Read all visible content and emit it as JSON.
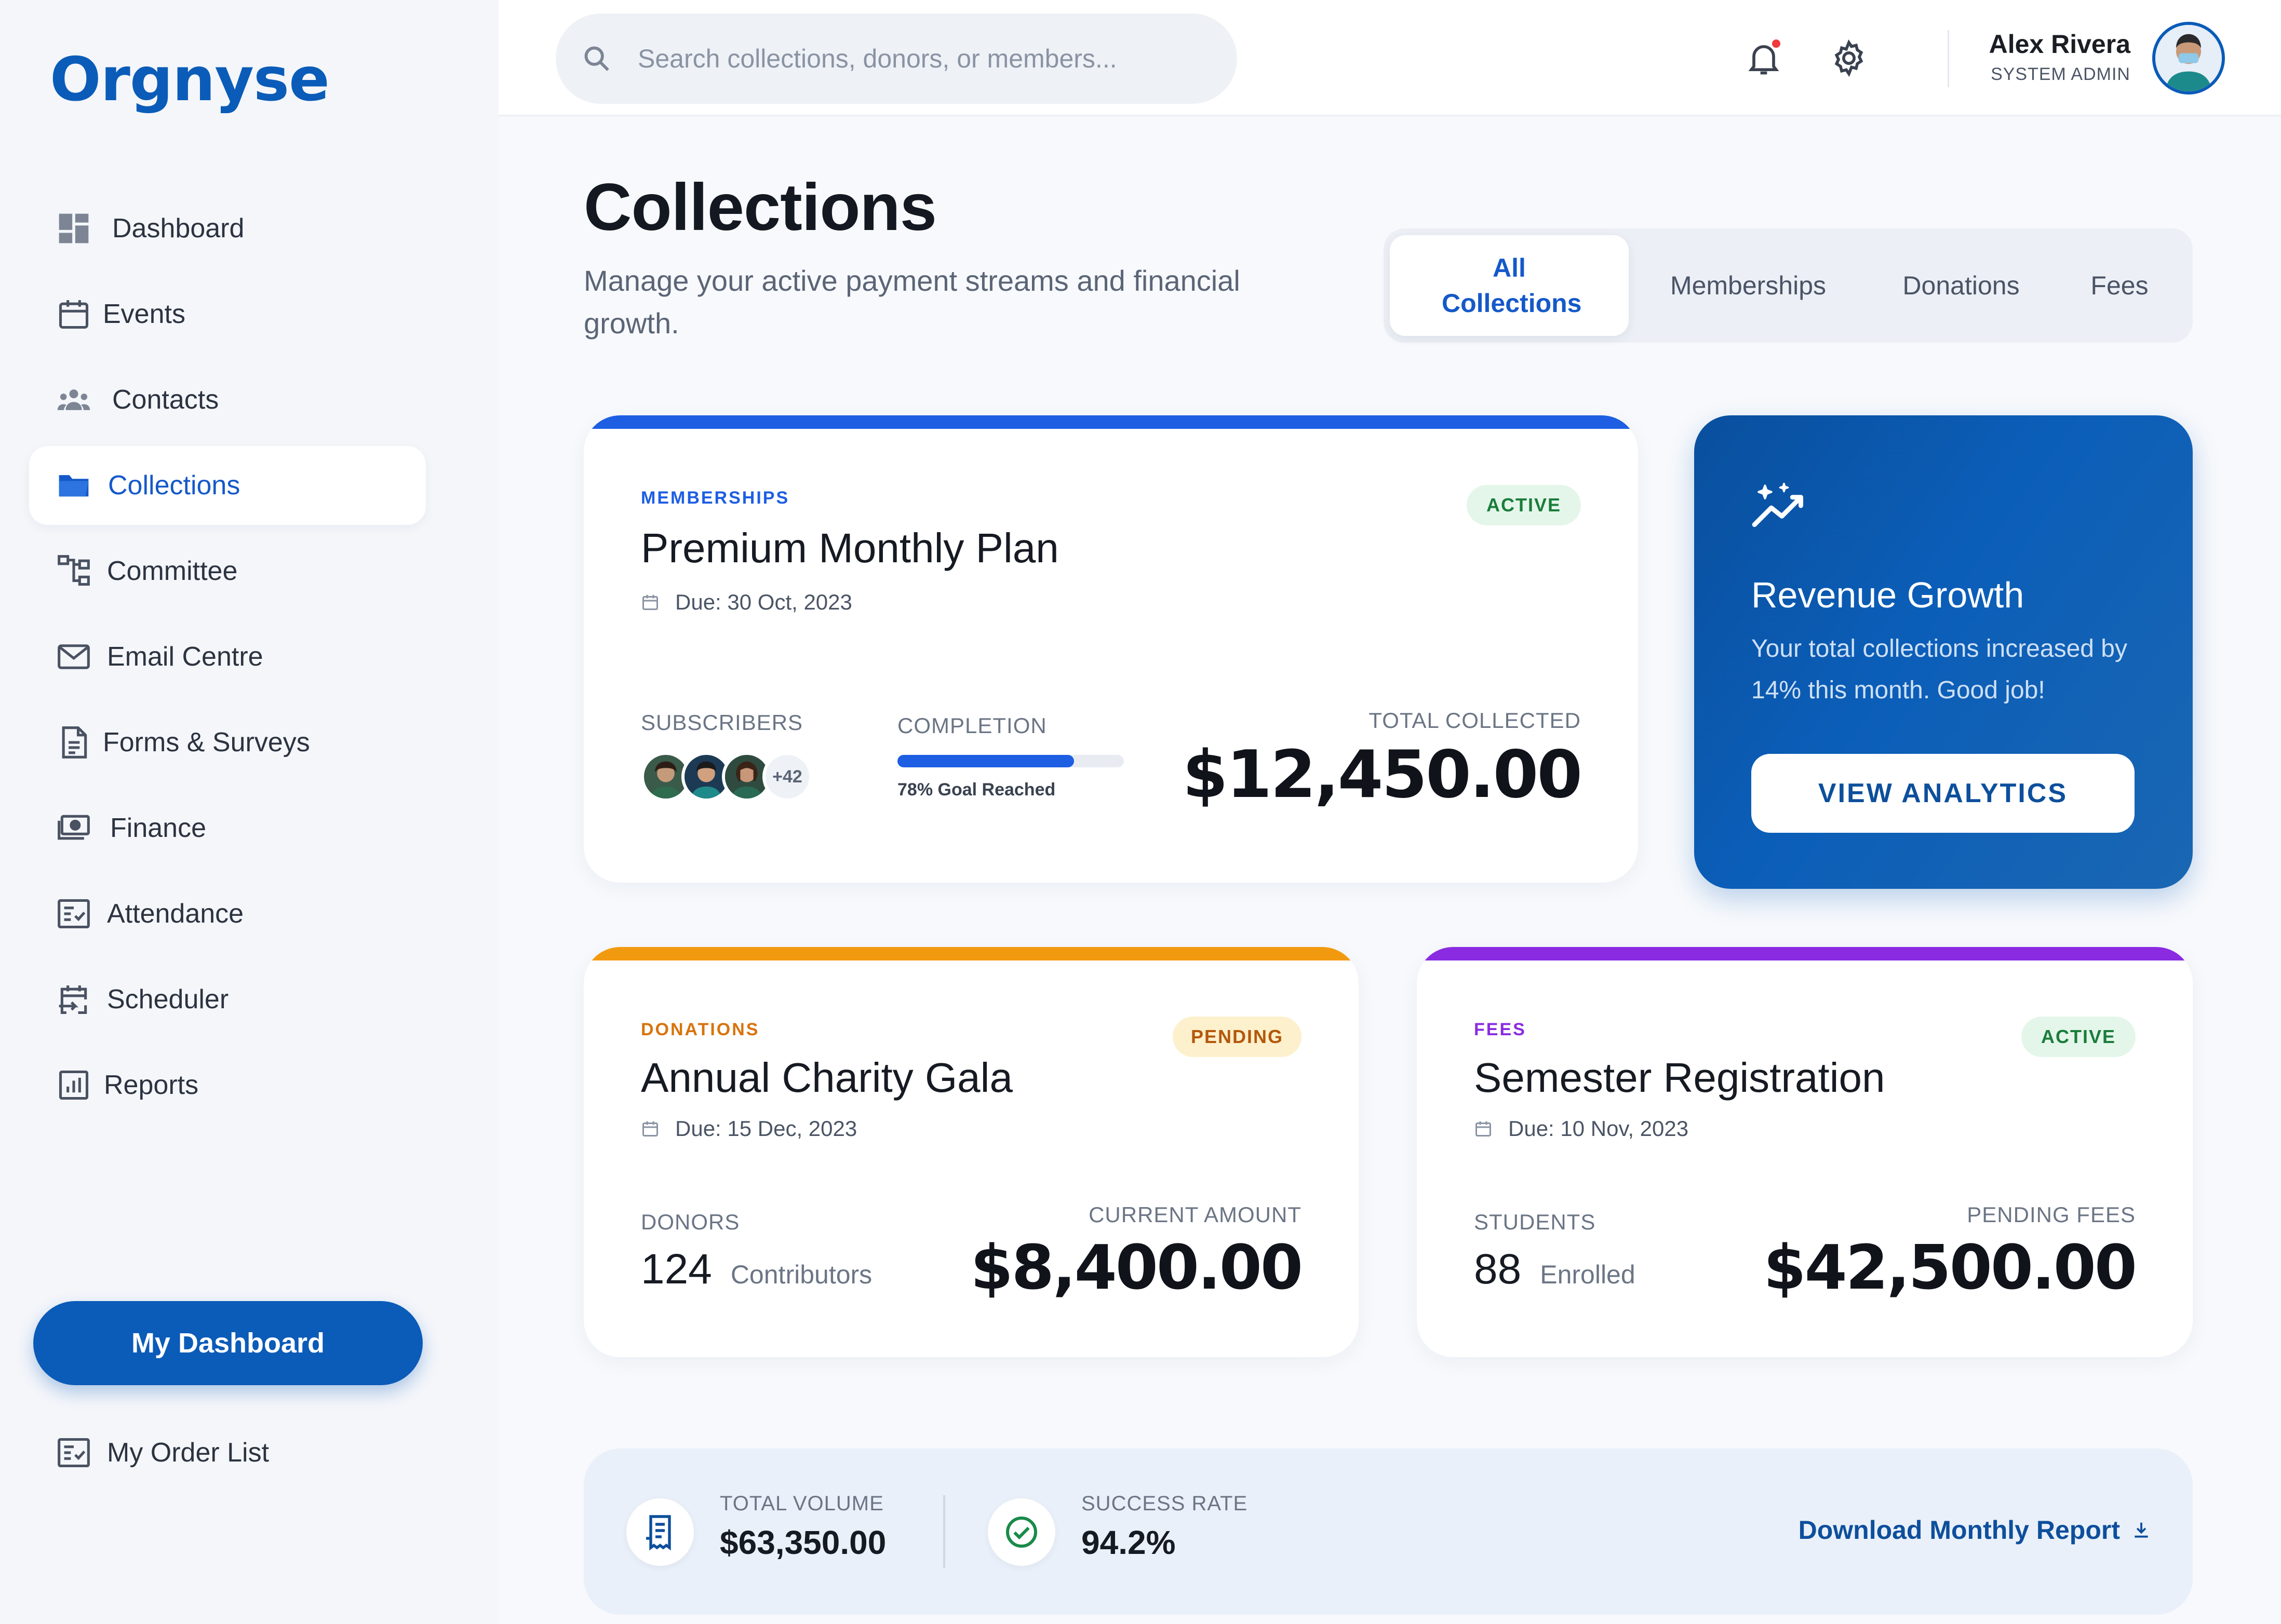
{
  "app": {
    "logo": "Orgnyse"
  },
  "sidebar": {
    "items": [
      {
        "label": "Dashboard",
        "icon": "dashboard-icon"
      },
      {
        "label": "Events",
        "icon": "calendar-icon"
      },
      {
        "label": "Contacts",
        "icon": "contacts-icon"
      },
      {
        "label": "Collections",
        "icon": "folder-icon",
        "active": true
      },
      {
        "label": "Committee",
        "icon": "hierarchy-icon"
      },
      {
        "label": "Email Centre",
        "icon": "mail-icon"
      },
      {
        "label": "Forms & Surveys",
        "icon": "document-icon"
      },
      {
        "label": "Finance",
        "icon": "money-icon"
      },
      {
        "label": "Attendance",
        "icon": "checklist-icon"
      },
      {
        "label": "Scheduler",
        "icon": "schedule-icon"
      },
      {
        "label": "Reports",
        "icon": "bar-chart-icon"
      }
    ],
    "dashboard_button": "My Dashboard",
    "order_list": "My Order List"
  },
  "header": {
    "search_placeholder": "Search collections, donors, or members...",
    "user_name": "Alex Rivera",
    "user_role": "SYSTEM ADMIN"
  },
  "page": {
    "title": "Collections",
    "subtitle": "Manage your active payment streams and financial growth."
  },
  "tabs": [
    {
      "label": "All Collections",
      "active": true
    },
    {
      "label": "Memberships"
    },
    {
      "label": "Donations"
    },
    {
      "label": "Fees"
    }
  ],
  "cards": {
    "membership": {
      "category": "MEMBERSHIPS",
      "title": "Premium Monthly Plan",
      "due": "Due: 30 Oct, 2023",
      "status": "ACTIVE",
      "subscribers_label": "SUBSCRIBERS",
      "subscribers_more": "+42",
      "completion_label": "COMPLETION",
      "completion_percent": 78,
      "completion_text": "78% Goal Reached",
      "total_label": "TOTAL COLLECTED",
      "total_value": "$12,450.00",
      "accent": "#1d5ee3"
    },
    "donation": {
      "category": "DONATIONS",
      "title": "Annual Charity Gala",
      "due": "Due: 15 Dec, 2023",
      "status": "PENDING",
      "count_label": "DONORS",
      "count_value": "124",
      "count_unit": "Contributors",
      "amount_label": "CURRENT AMOUNT",
      "amount_value": "$8,400.00",
      "accent": "#f29a0f"
    },
    "fees": {
      "category": "FEES",
      "title": "Semester Registration",
      "due": "Due: 10 Nov, 2023",
      "status": "ACTIVE",
      "count_label": "STUDENTS",
      "count_value": "88",
      "count_unit": "Enrolled",
      "amount_label": "PENDING FEES",
      "amount_value": "$42,500.00",
      "accent": "#8a2be2"
    }
  },
  "growth": {
    "title": "Revenue Growth",
    "text": "Your total collections increased by 14% this month. Good job!",
    "button": "VIEW ANALYTICS"
  },
  "summary": {
    "volume_label": "TOTAL VOLUME",
    "volume_value": "$63,350.00",
    "success_label": "SUCCESS RATE",
    "success_value": "94.2%",
    "download_label": "Download Monthly Report"
  }
}
